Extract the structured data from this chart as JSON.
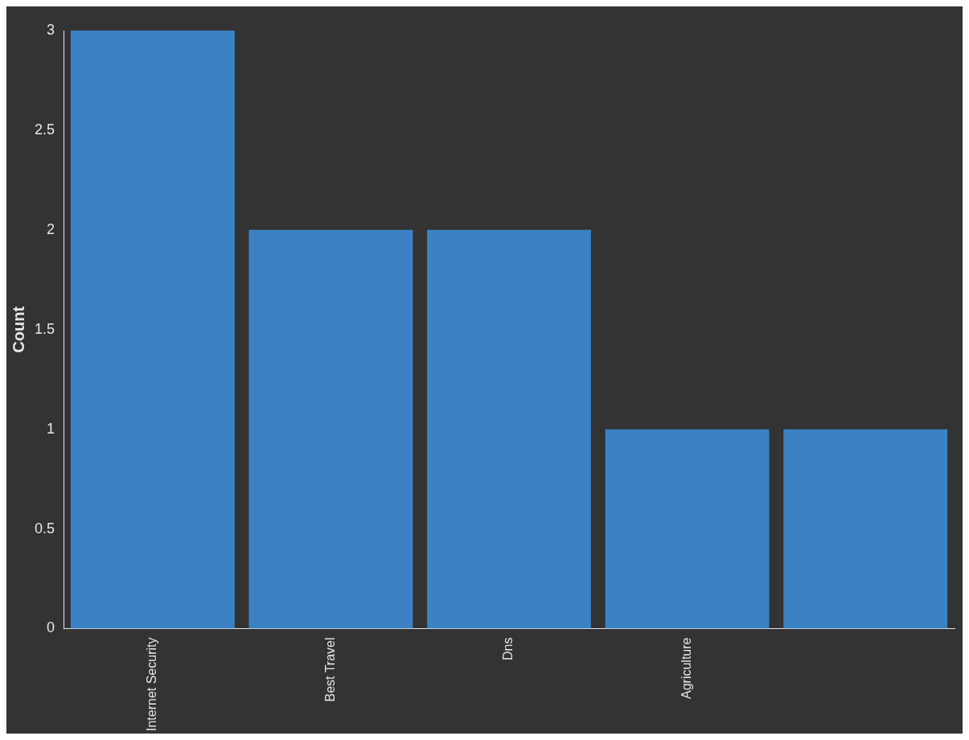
{
  "chart_data": {
    "type": "bar",
    "ylabel": "Count",
    "categories": [
      "Internet Security",
      "Best Travel",
      "Dns",
      "Agriculture",
      null
    ],
    "values": [
      3,
      2,
      2,
      1,
      1
    ],
    "color": "#3a82c4",
    "ylim": [
      0,
      3
    ],
    "yticks": [
      0,
      0.5,
      1,
      1.5,
      2,
      2.5,
      3
    ],
    "grid": false,
    "legend": false
  }
}
